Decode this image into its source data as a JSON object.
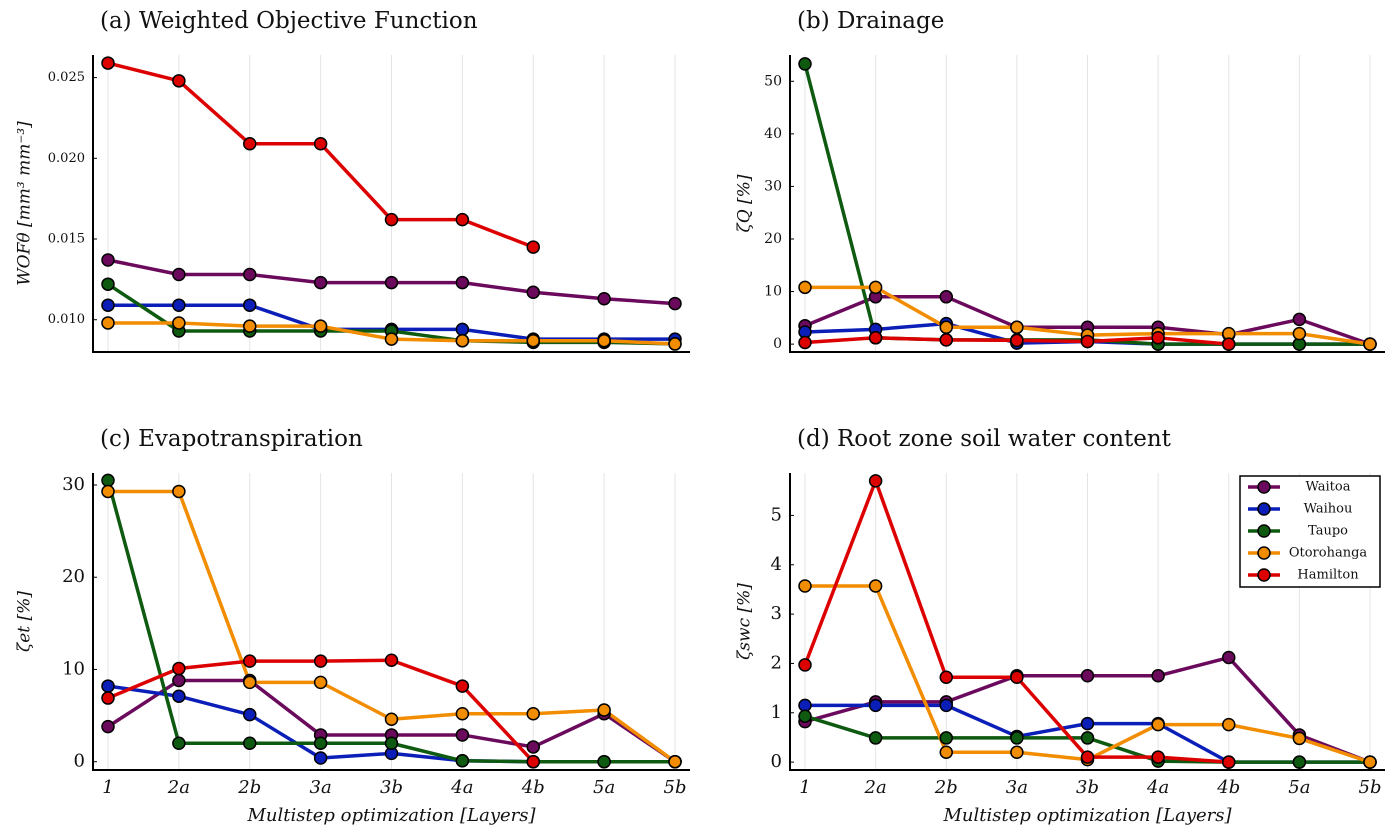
{
  "chart_data": [
    {
      "type": "line",
      "title": "(a) Weighted Objective Function",
      "y_label": "WOFθ [mm³ mm⁻³]",
      "ylim": [
        0.008,
        0.0264
      ],
      "yticks": [
        {
          "value": 0.01,
          "label": "0.010"
        },
        0.015,
        {
          "value": 0.02,
          "label": "0.020"
        },
        0.025
      ],
      "xgrid": true,
      "series": [
        {
          "color": "#6b0a5c",
          "values": [
            0.0137,
            0.0128,
            0.0128,
            0.0123,
            0.0123,
            0.0123,
            0.0117,
            0.0113,
            0.011
          ]
        },
        {
          "color": "#0b1fb8",
          "values": [
            0.0109,
            0.0109,
            0.0109,
            0.0094,
            0.0094,
            0.0094,
            0.0088,
            0.0088,
            0.0088
          ]
        },
        {
          "color": "#0e5a10",
          "values": [
            0.0122,
            0.0093,
            0.0093,
            0.0093,
            0.0093,
            0.0087,
            0.0086,
            0.0086,
            0.0085
          ]
        },
        {
          "color": "#f28c00",
          "values": [
            0.0098,
            0.0098,
            0.0096,
            0.0096,
            0.0088,
            0.0087,
            0.0087,
            0.0087,
            0.0085
          ]
        },
        {
          "color": "#dd0000",
          "values": [
            0.0259,
            0.0248,
            0.0209,
            0.0209,
            0.0162,
            0.0162,
            0.0145,
            null,
            null
          ]
        }
      ]
    },
    {
      "type": "line",
      "title": "(b) Drainage",
      "y_label": "ζQ [%]",
      "ylim": [
        -1.5,
        55
      ],
      "yticks": [
        0,
        10,
        20,
        30,
        40,
        50
      ],
      "xgrid": true,
      "series": [
        {
          "color": "#6b0a5c",
          "values": [
            3.5,
            9,
            9,
            3.2,
            3.2,
            3.2,
            1.8,
            4.7,
            0
          ]
        },
        {
          "color": "#0b1fb8",
          "values": [
            2.3,
            2.8,
            3.9,
            0.2,
            0.5,
            0,
            0,
            0,
            0
          ]
        },
        {
          "color": "#0e5a10",
          "values": [
            53.3,
            1.2,
            0.8,
            0.8,
            0.8,
            0,
            0,
            0,
            0
          ]
        },
        {
          "color": "#f28c00",
          "values": [
            10.8,
            10.8,
            3.2,
            3.2,
            1.7,
            2.0,
            2.0,
            2.0,
            0
          ]
        },
        {
          "color": "#dd0000",
          "values": [
            0.3,
            1.2,
            0.8,
            0.7,
            0.5,
            1.2,
            0,
            null,
            null
          ]
        }
      ]
    },
    {
      "type": "line",
      "title": "(c) Evapotranspiration",
      "y_label": "ζet [%]",
      "x_label": "Multistep optimization [Layers]",
      "categories": [
        "1",
        "2a",
        "2b",
        "3a",
        "3b",
        "4a",
        "4b",
        "5a",
        "5b"
      ],
      "ylim": [
        -0.9,
        31.3
      ],
      "yticks": [
        0,
        10,
        20,
        30
      ],
      "xgrid": true,
      "series": [
        {
          "color": "#6b0a5c",
          "values": [
            3.8,
            8.8,
            8.8,
            2.9,
            2.9,
            2.9,
            1.6,
            5.2,
            0
          ]
        },
        {
          "color": "#0b1fb8",
          "values": [
            8.2,
            7.1,
            5.1,
            0.4,
            0.9,
            0.1,
            0,
            0,
            0
          ]
        },
        {
          "color": "#0e5a10",
          "values": [
            30.5,
            2.0,
            2.0,
            2.0,
            2.0,
            0.1,
            0,
            0,
            0
          ]
        },
        {
          "color": "#f28c00",
          "values": [
            29.3,
            29.3,
            8.6,
            8.6,
            4.6,
            5.2,
            5.2,
            5.6,
            0
          ]
        },
        {
          "color": "#dd0000",
          "values": [
            6.9,
            10.1,
            10.9,
            10.9,
            11.0,
            8.2,
            0,
            null,
            null
          ]
        }
      ]
    },
    {
      "type": "line",
      "title": "(d) Root zone soil water content",
      "y_label": "ζswc [%]",
      "x_label": "Multistep optimization [Layers]",
      "categories": [
        "1",
        "2a",
        "2b",
        "3a",
        "3b",
        "4a",
        "4b",
        "5a",
        "5b"
      ],
      "ylim": [
        -0.16,
        5.86
      ],
      "yticks": [
        0,
        1,
        2,
        3,
        4,
        5
      ],
      "xgrid": true,
      "legend": "upper right",
      "series": [
        {
          "name": "Waitoa",
          "color": "#6b0a5c",
          "values": [
            0.82,
            1.22,
            1.22,
            1.75,
            1.75,
            1.75,
            2.12,
            0.55,
            0
          ]
        },
        {
          "name": "Waihou",
          "color": "#0b1fb8",
          "values": [
            1.15,
            1.15,
            1.15,
            0.52,
            0.78,
            0.78,
            0,
            0,
            0
          ]
        },
        {
          "name": "Taupo",
          "color": "#0e5a10",
          "values": [
            0.93,
            0.49,
            0.49,
            0.49,
            0.49,
            0.02,
            0,
            0,
            0
          ]
        },
        {
          "name": "Otorohanga",
          "color": "#f28c00",
          "values": [
            3.57,
            3.57,
            0.2,
            0.2,
            0.05,
            0.76,
            0.76,
            0.48,
            0
          ]
        },
        {
          "name": "Hamilton",
          "color": "#dd0000",
          "values": [
            1.97,
            5.7,
            1.72,
            1.72,
            0.1,
            0.1,
            0,
            null,
            null
          ]
        }
      ]
    }
  ]
}
